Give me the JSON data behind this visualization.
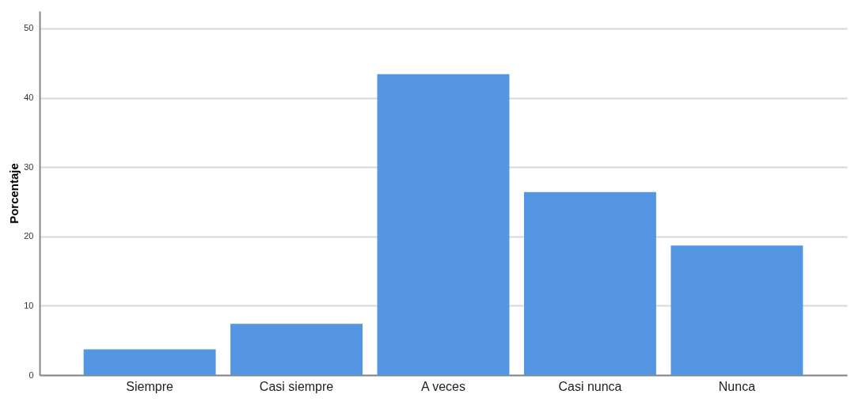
{
  "chart_data": {
    "type": "bar",
    "ylabel": "Porcentaje",
    "categories": [
      "Siempre",
      "Casi siempre",
      "A veces",
      "Casi nunca",
      "Nunca"
    ],
    "values": [
      3.7,
      7.4,
      43.4,
      26.4,
      18.7
    ],
    "color": "#5596e3",
    "ylim": [
      0,
      52.5
    ],
    "yticks": [
      0,
      10,
      20,
      30,
      40,
      50
    ],
    "grid": "y"
  }
}
